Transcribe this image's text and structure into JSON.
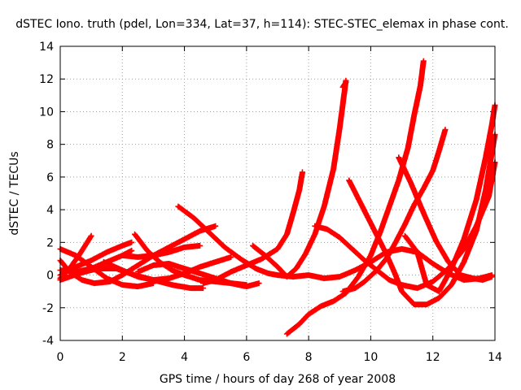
{
  "chart_data": {
    "type": "scatter",
    "title": "dSTEC Iono. truth (pdel, Lon=334, Lat=37, h=114): STEC-STEC_elemax in phase cont.",
    "xlabel": "GPS time / hours of day 268 of year 2008",
    "ylabel": "dSTEC  / TECUs",
    "xlim": [
      0,
      14
    ],
    "ylim": [
      -4,
      14
    ],
    "xticks": [
      0,
      2,
      4,
      6,
      8,
      10,
      12,
      14
    ],
    "yticks": [
      -4,
      -2,
      0,
      2,
      4,
      6,
      8,
      10,
      12,
      14
    ],
    "grid": true,
    "marker": "plus",
    "color": "#ff0000",
    "series": [
      {
        "points": [
          [
            0,
            1.6
          ],
          [
            0.5,
            1.2
          ],
          [
            1,
            0.5
          ],
          [
            1.5,
            -0.2
          ],
          [
            2,
            -0.6
          ],
          [
            2.5,
            -0.7
          ],
          [
            3,
            -0.5
          ]
        ]
      },
      {
        "points": [
          [
            0,
            0.9
          ],
          [
            0.3,
            0.2
          ],
          [
            0.7,
            -0.3
          ],
          [
            1.1,
            -0.5
          ],
          [
            1.6,
            -0.4
          ],
          [
            2,
            0
          ],
          [
            2.5,
            0.6
          ],
          [
            3,
            1.2
          ],
          [
            3.5,
            1.7
          ],
          [
            4,
            2.2
          ],
          [
            4.5,
            2.7
          ],
          [
            5,
            3.0
          ]
        ]
      },
      {
        "points": [
          [
            0,
            -0.2
          ],
          [
            0.3,
            0.4
          ],
          [
            0.6,
            1.2
          ],
          [
            0.8,
            1.8
          ],
          [
            1,
            2.4
          ]
        ]
      },
      {
        "points": [
          [
            0,
            0.3
          ],
          [
            0.5,
            0.2
          ],
          [
            1,
            0.4
          ],
          [
            1.5,
            0.8
          ],
          [
            2,
            1.2
          ],
          [
            2.3,
            1.5
          ]
        ]
      },
      {
        "points": [
          [
            0,
            0
          ],
          [
            0.5,
            0.5
          ],
          [
            1,
            0.9
          ],
          [
            1.5,
            1.4
          ],
          [
            2,
            1.8
          ],
          [
            2.3,
            2.0
          ]
        ]
      },
      {
        "points": [
          [
            0,
            -0.3
          ],
          [
            0.6,
            0.1
          ],
          [
            1.2,
            0.4
          ],
          [
            1.8,
            0.4
          ],
          [
            2.4,
            0
          ],
          [
            3,
            -0.3
          ],
          [
            3.6,
            -0.6
          ],
          [
            4.2,
            -0.8
          ],
          [
            4.6,
            -0.8
          ]
        ]
      },
      {
        "points": [
          [
            1.4,
            0.8
          ],
          [
            2,
            0.3
          ],
          [
            2.5,
            -0.1
          ],
          [
            3,
            -0.3
          ],
          [
            3.5,
            -0.2
          ],
          [
            4,
            0.1
          ],
          [
            4.5,
            0.5
          ],
          [
            5,
            0.8
          ],
          [
            5.5,
            1.1
          ]
        ]
      },
      {
        "points": [
          [
            2.4,
            2.5
          ],
          [
            2.8,
            1.5
          ],
          [
            3.2,
            0.8
          ],
          [
            3.6,
            0.3
          ],
          [
            4.0,
            0
          ],
          [
            4.5,
            -0.3
          ],
          [
            5,
            -0.4
          ],
          [
            5.5,
            -0.5
          ],
          [
            6,
            -0.7
          ],
          [
            6.4,
            -0.5
          ]
        ]
      },
      {
        "points": [
          [
            2,
            1.2
          ],
          [
            2.5,
            1.1
          ],
          [
            3,
            1.2
          ],
          [
            3.5,
            1.4
          ],
          [
            4,
            1.7
          ],
          [
            4.5,
            1.8
          ]
        ]
      },
      {
        "points": [
          [
            2.5,
            0.2
          ],
          [
            3,
            0.6
          ],
          [
            3.5,
            0.7
          ],
          [
            4,
            0.4
          ],
          [
            4.5,
            0.1
          ],
          [
            5,
            -0.2
          ],
          [
            5.5,
            -0.5
          ],
          [
            6,
            -0.6
          ]
        ]
      },
      {
        "points": [
          [
            3.8,
            4.2
          ],
          [
            4.3,
            3.5
          ],
          [
            4.8,
            2.6
          ],
          [
            5.3,
            1.7
          ],
          [
            5.8,
            1.0
          ],
          [
            6.3,
            0.4
          ],
          [
            6.7,
            0.1
          ],
          [
            7,
            0
          ],
          [
            7.5,
            -0.1
          ],
          [
            8,
            0
          ],
          [
            8.5,
            -0.2
          ],
          [
            9,
            -0.1
          ],
          [
            9.5,
            0.3
          ],
          [
            10,
            0.8
          ],
          [
            10.5,
            1.4
          ],
          [
            11,
            1.6
          ],
          [
            11.5,
            1.4
          ],
          [
            12,
            0.7
          ],
          [
            12.5,
            0.1
          ],
          [
            13,
            -0.3
          ],
          [
            13.5,
            -0.2
          ],
          [
            13.9,
            0
          ]
        ]
      },
      {
        "points": [
          [
            4.6,
            -0.5
          ],
          [
            5,
            -0.3
          ],
          [
            5.5,
            0.2
          ],
          [
            6,
            0.6
          ],
          [
            6.5,
            1.0
          ],
          [
            7,
            1.6
          ],
          [
            7.3,
            2.5
          ],
          [
            7.5,
            3.8
          ],
          [
            7.7,
            5.2
          ],
          [
            7.8,
            6.3
          ]
        ]
      },
      {
        "points": [
          [
            6.2,
            1.8
          ],
          [
            6.6,
            1.2
          ],
          [
            7,
            0.5
          ],
          [
            7.3,
            -0.1
          ],
          [
            7.6,
            0.4
          ],
          [
            7.9,
            1.3
          ],
          [
            8.2,
            2.5
          ],
          [
            8.5,
            4.2
          ],
          [
            8.8,
            6.5
          ],
          [
            9.0,
            9.0
          ],
          [
            9.2,
            11.9
          ]
        ]
      },
      {
        "points": [
          [
            7.3,
            -3.6
          ],
          [
            7.7,
            -3.0
          ],
          [
            8.0,
            -2.4
          ],
          [
            8.4,
            -1.9
          ],
          [
            8.8,
            -1.6
          ],
          [
            9.2,
            -1.1
          ],
          [
            9.6,
            -0.1
          ],
          [
            10,
            1.2
          ],
          [
            10.3,
            2.6
          ],
          [
            10.6,
            4.2
          ],
          [
            10.9,
            5.8
          ],
          [
            11.2,
            7.8
          ],
          [
            11.4,
            9.8
          ],
          [
            11.6,
            11.6
          ],
          [
            11.7,
            13.1
          ]
        ]
      },
      {
        "points": [
          [
            8.2,
            3.0
          ],
          [
            8.6,
            2.8
          ],
          [
            9,
            2.3
          ],
          [
            9.4,
            1.6
          ],
          [
            9.8,
            0.9
          ],
          [
            10.2,
            0.3
          ],
          [
            10.6,
            -0.3
          ],
          [
            11,
            -0.6
          ],
          [
            11.5,
            -0.8
          ],
          [
            12,
            -0.4
          ],
          [
            12.5,
            0.4
          ],
          [
            13,
            1.6
          ],
          [
            13.4,
            3.0
          ],
          [
            13.8,
            4.8
          ],
          [
            14,
            6.9
          ]
        ]
      },
      {
        "points": [
          [
            9.1,
            -1.0
          ],
          [
            9.5,
            -0.8
          ],
          [
            9.8,
            -0.4
          ],
          [
            10.2,
            0.3
          ],
          [
            10.5,
            1.0
          ],
          [
            10.8,
            2.0
          ],
          [
            11.1,
            3.1
          ],
          [
            11.4,
            4.3
          ],
          [
            11.7,
            5.3
          ],
          [
            12.0,
            6.4
          ],
          [
            12.2,
            7.6
          ],
          [
            12.4,
            8.9
          ]
        ]
      },
      {
        "points": [
          [
            9.3,
            5.8
          ],
          [
            9.7,
            4.3
          ],
          [
            10.1,
            2.8
          ],
          [
            10.5,
            1.3
          ],
          [
            10.8,
            0
          ],
          [
            11,
            -1
          ],
          [
            11.4,
            -1.8
          ],
          [
            11.8,
            -1.8
          ],
          [
            12.2,
            -1.4
          ],
          [
            12.6,
            -0.6
          ],
          [
            13,
            0.8
          ],
          [
            13.4,
            2.7
          ],
          [
            13.7,
            5.2
          ],
          [
            14,
            8.6
          ]
        ]
      },
      {
        "points": [
          [
            10.9,
            7.2
          ],
          [
            11.3,
            5.6
          ],
          [
            11.7,
            3.8
          ],
          [
            12.1,
            2.1
          ],
          [
            12.5,
            0.8
          ],
          [
            12.9,
            0
          ],
          [
            13.3,
            -0.2
          ],
          [
            13.6,
            -0.3
          ],
          [
            13.9,
            -0.1
          ]
        ]
      },
      {
        "points": [
          [
            9.2,
            11.8
          ],
          [
            9.1,
            11.5
          ]
        ]
      },
      {
        "points": [
          [
            11.1,
            2.4
          ],
          [
            11.5,
            1.4
          ],
          [
            11.8,
            -0.6
          ],
          [
            12.2,
            -1.0
          ],
          [
            12.6,
            0.4
          ],
          [
            13,
            2.2
          ],
          [
            13.4,
            4.6
          ],
          [
            13.7,
            7.2
          ],
          [
            13.9,
            9.2
          ],
          [
            14,
            10.4
          ]
        ]
      }
    ]
  }
}
